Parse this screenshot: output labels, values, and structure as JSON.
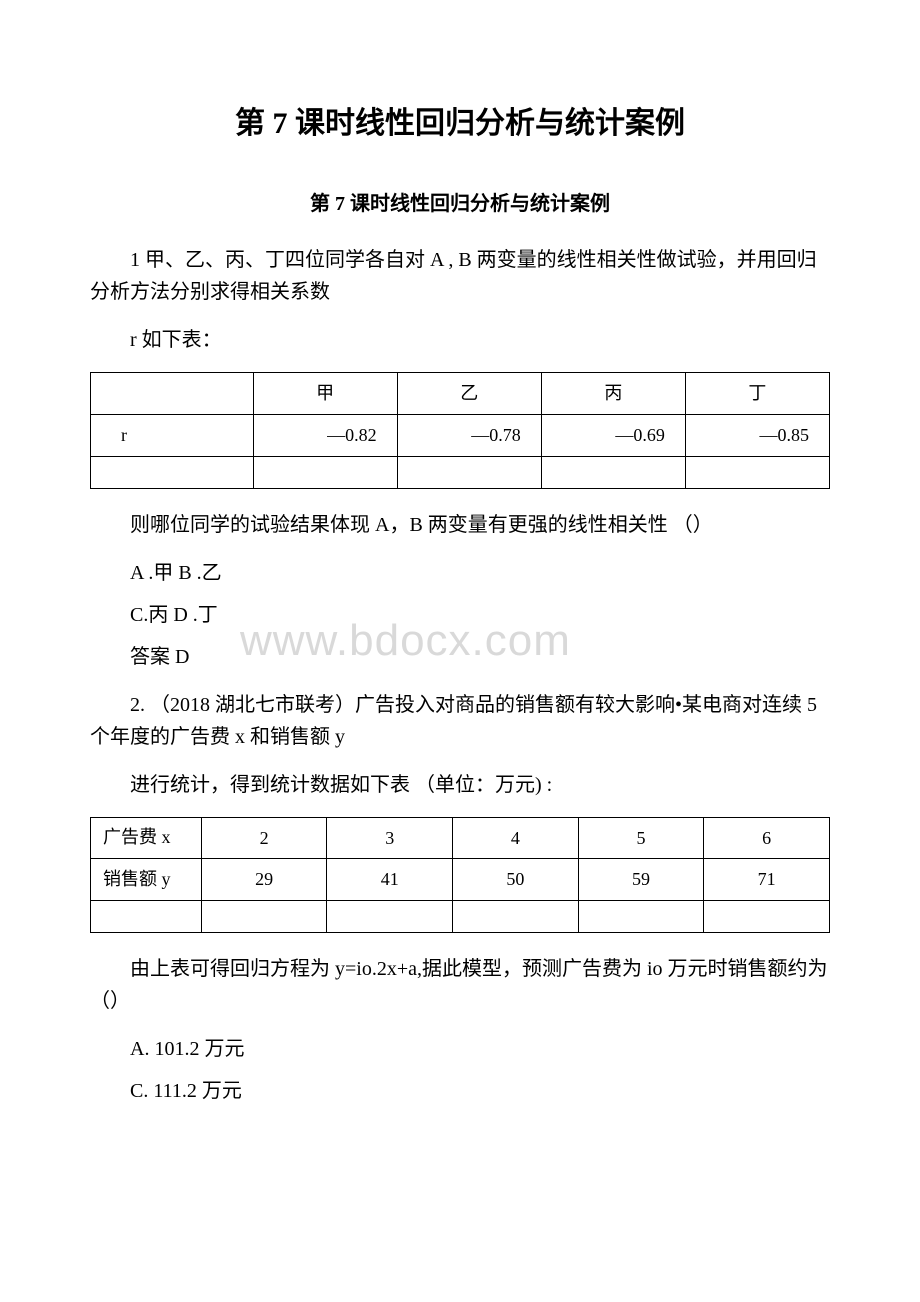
{
  "title": "第 7 课时线性回归分析与统计案例",
  "subtitle": "第 7 课时线性回归分析与统计案例",
  "q1_intro": "1 甲、乙、丙、丁四位同学各自对 A , B 两变量的线性相关性做试验，并用回归分析方法分别求得相关系数",
  "q1_tablehint": "r 如下表：",
  "table1": {
    "row0": [
      "",
      "甲",
      "乙",
      "丙",
      "丁"
    ],
    "row1": [
      "r",
      "—0.82",
      "—0.78",
      "—0.69",
      "—0.85"
    ],
    "row2": [
      "",
      "",
      "",
      "",
      ""
    ]
  },
  "q1_question": "则哪位同学的试验结果体现 A，B 两变量有更强的线性相关性 （）",
  "q1_optAB": "A .甲 B .乙",
  "q1_optCD": "C.丙 D .丁",
  "q1_answer": "答案 D",
  "q2_intro": "2. （2018 湖北七市联考）广告投入对商品的销售额有较大影响•某电商对连续 5 个年度的广告费 x 和销售额 y",
  "q2_tablehint": "进行统计，得到统计数据如下表 （单位：万元) :",
  "table2": {
    "row0": [
      "广告费 x",
      "2",
      "3",
      "4",
      "5",
      "6"
    ],
    "row1": [
      "销售额 y",
      "29",
      "41",
      "50",
      "59",
      "71"
    ],
    "row2": [
      "",
      "",
      "",
      "",
      "",
      ""
    ]
  },
  "q2_question": "由上表可得回归方程为 y=io.2x+a,据此模型，预测广告费为 io 万元时销售额约为（）",
  "q2_optA": "A. 101.2 万元",
  "q2_optC": "C. 111.2 万元",
  "watermark": "www.bdocx.com"
}
